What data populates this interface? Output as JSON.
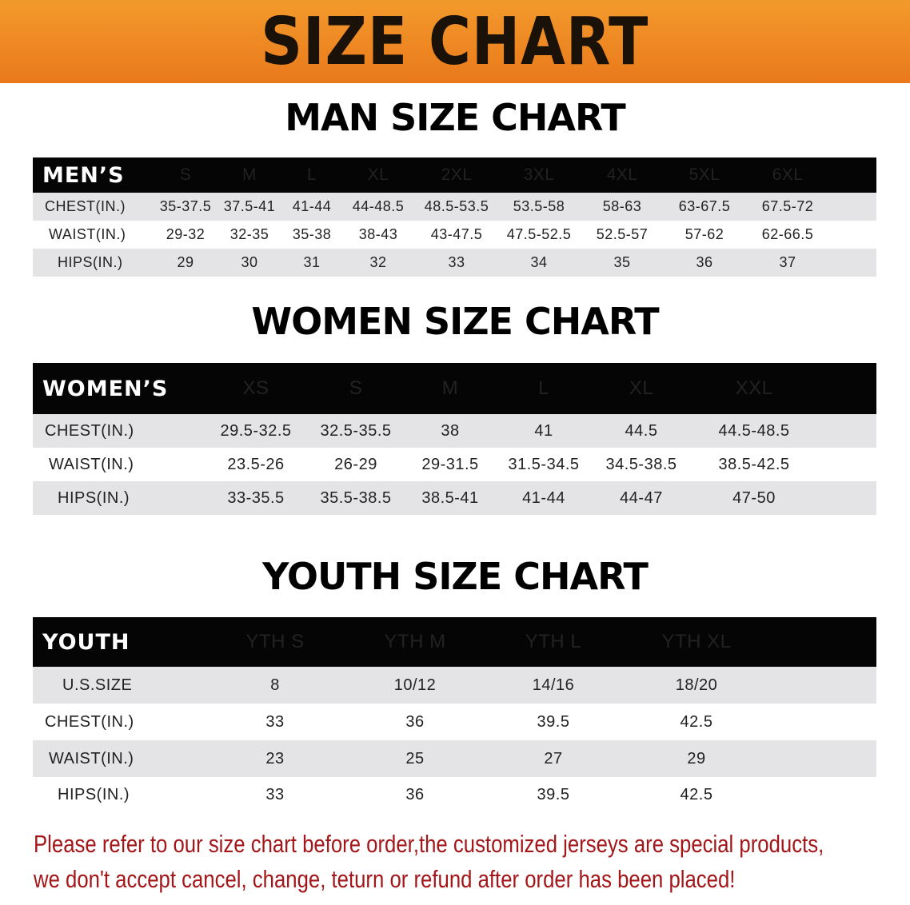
{
  "banner": {
    "title": "SIZE CHART",
    "color": "#ee8420"
  },
  "men": {
    "title": "MAN SIZE CHART",
    "header_label": "MEN’S",
    "sizes": [
      "S",
      "M",
      "L",
      "XL",
      "2XL",
      "3XL",
      "4XL",
      "5XL",
      "6XL"
    ],
    "rows": [
      {
        "label": "CHEST(IN.)",
        "values": [
          "35-37.5",
          "37.5-41",
          "41-44",
          "44-48.5",
          "48.5-53.5",
          "53.5-58",
          "58-63",
          "63-67.5",
          "67.5-72"
        ]
      },
      {
        "label": "WAIST(IN.)",
        "values": [
          "29-32",
          "32-35",
          "35-38",
          "38-43",
          "43-47.5",
          "47.5-52.5",
          "52.5-57",
          "57-62",
          "62-66.5"
        ]
      },
      {
        "label": "HIPS(IN.)",
        "values": [
          "29",
          "30",
          "31",
          "32",
          "33",
          "34",
          "35",
          "36",
          "37"
        ]
      }
    ]
  },
  "women": {
    "title": "WOMEN SIZE CHART",
    "header_label": "WOMEN’S",
    "sizes": [
      "XS",
      "S",
      "M",
      "L",
      "XL",
      "XXL"
    ],
    "rows": [
      {
        "label": "CHEST(IN.)",
        "values": [
          "29.5-32.5",
          "32.5-35.5",
          "38",
          "41",
          "44.5",
          "44.5-48.5"
        ]
      },
      {
        "label": "WAIST(IN.)",
        "values": [
          "23.5-26",
          "26-29",
          "29-31.5",
          "31.5-34.5",
          "34.5-38.5",
          "38.5-42.5"
        ]
      },
      {
        "label": "HIPS(IN.)",
        "values": [
          "33-35.5",
          "35.5-38.5",
          "38.5-41",
          "41-44",
          "44-47",
          "47-50"
        ]
      }
    ]
  },
  "youth": {
    "title": "YOUTH SIZE CHART",
    "header_label": "YOUTH",
    "sizes": [
      "YTH S",
      "YTH M",
      "YTH L",
      "YTH XL"
    ],
    "rows": [
      {
        "label": "U.S.SIZE",
        "values": [
          "8",
          "10/12",
          "14/16",
          "18/20"
        ]
      },
      {
        "label": "CHEST(IN.)",
        "values": [
          "33",
          "36",
          "39.5",
          "42.5"
        ]
      },
      {
        "label": "WAIST(IN.)",
        "values": [
          "23",
          "25",
          "27",
          "29"
        ]
      },
      {
        "label": "HIPS(IN.)",
        "values": [
          "33",
          "36",
          "39.5",
          "42.5"
        ]
      }
    ]
  },
  "notice": {
    "line1": "Please refer to our size chart before order,the customized jerseys are special products,",
    "line2": "we don't accept cancel, change, teturn or refund after order has been placed!",
    "color": "#a3161a"
  }
}
